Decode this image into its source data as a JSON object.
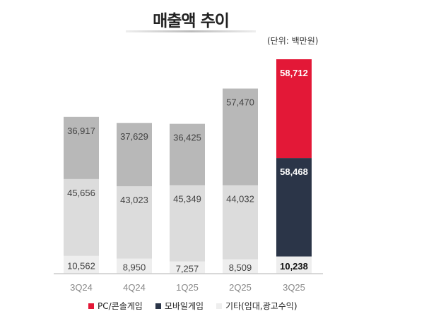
{
  "chart_data": {
    "type": "bar",
    "stacked": true,
    "title": "매출액 추이",
    "unit": "(단위: 백만원)",
    "categories": [
      "3Q24",
      "4Q24",
      "1Q25",
      "2Q25",
      "3Q25"
    ],
    "series": [
      {
        "name": "기타(임대,광고수익)",
        "values": [
          10562,
          8950,
          7257,
          8509,
          10238
        ]
      },
      {
        "name": "모바일게임",
        "values": [
          45656,
          43023,
          45349,
          44032,
          58468
        ]
      },
      {
        "name": "PC/콘솔게임",
        "values": [
          36917,
          37629,
          36425,
          57470,
          58712
        ]
      }
    ],
    "labels": [
      [
        "10,562",
        "8,950",
        "7,257",
        "8,509",
        "10,238"
      ],
      [
        "45,656",
        "43,023",
        "45,349",
        "44,032",
        "58,468"
      ],
      [
        "36,917",
        "37,629",
        "36,425",
        "57,470",
        "58,712"
      ]
    ],
    "colors": {
      "past": [
        "#eeeeee",
        "#dcdcdc",
        "#b8b8b8"
      ],
      "highlight": [
        "#eeeeee",
        "#2b3548",
        "#e31837"
      ]
    },
    "legend": [
      {
        "label": "PC/콘솔게임",
        "color": "#e31837"
      },
      {
        "label": "모바일게임",
        "color": "#2b3548"
      },
      {
        "label": "기타(임대,광고수익)",
        "color": "#eeeeee"
      }
    ]
  }
}
